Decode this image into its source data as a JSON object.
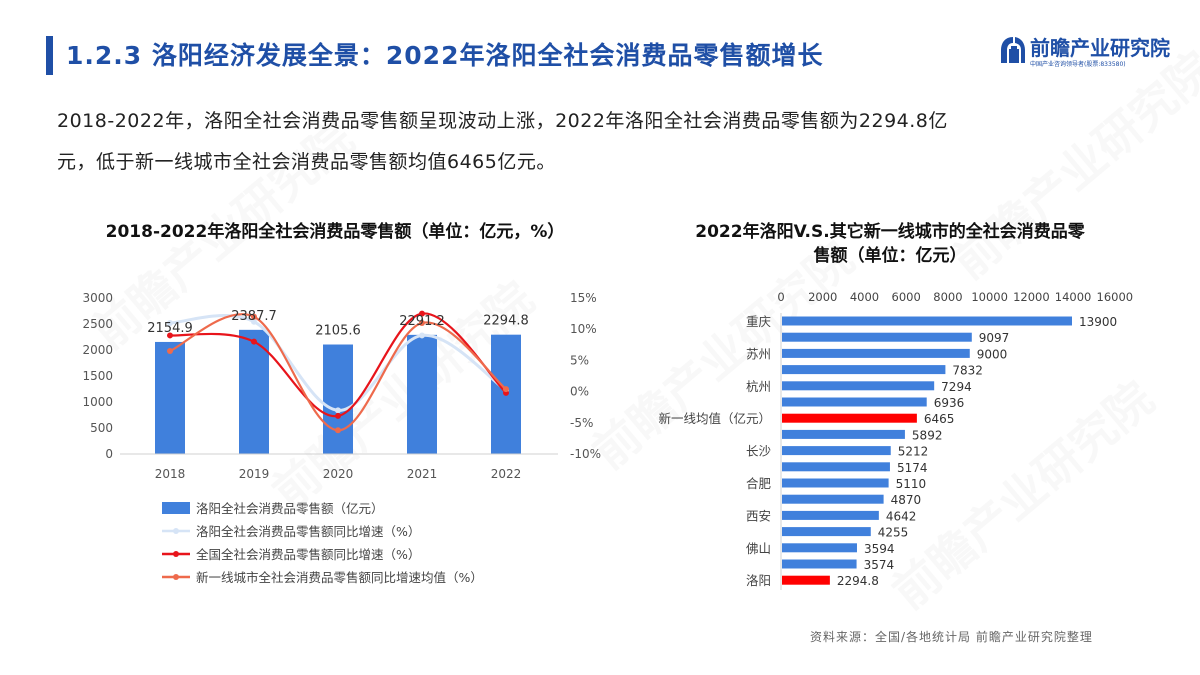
{
  "header": {
    "title": "1.2.3 洛阳经济发展全景：2022年洛阳全社会消费品零售额增长",
    "accent_color": "#1f4fa6",
    "logo": {
      "name": "前瞻产业研究院",
      "subtitle": "中国产业咨询领导者(股票:833580)",
      "icon": "qianzhan-logo-icon"
    }
  },
  "summary": {
    "line1": "2018-2022年，洛阳全社会消费品零售额呈现波动上涨，2022年洛阳全社会消费品零售额为2294.8亿",
    "line2": "元，低于新一线城市全社会消费品零售额均值6465亿元。"
  },
  "left_chart": {
    "title": "2018-2022年洛阳全社会消费品零售额（单位：亿元，%）",
    "legend": [
      {
        "label": "洛阳全社会消费品零售额（亿元）",
        "type": "bar",
        "color": "#4080dc"
      },
      {
        "label": "洛阳全社会消费品零售额同比增速（%）",
        "type": "line",
        "color": "#d6e4f6"
      },
      {
        "label": "全国全社会消费品零售额同比增速（%）",
        "type": "line",
        "color": "#e8141b"
      },
      {
        "label": "新一线城市全社会消费品零售额同比增速均值（%）",
        "type": "line",
        "color": "#ee6a4c"
      }
    ]
  },
  "right_chart": {
    "title_line1": "2022年洛阳V.S.其它新一线城市的全社会消费品零",
    "title_line2": "售额（单位：亿元）"
  },
  "source": "资料来源：全国/各地统计局 前瞻产业研究院整理",
  "chart_data": [
    {
      "type": "bar+line",
      "title": "2018-2022年洛阳全社会消费品零售额（单位：亿元，%）",
      "categories": [
        "2018",
        "2019",
        "2020",
        "2021",
        "2022"
      ],
      "y_left": {
        "ticks": [
          "0",
          "500",
          "1000",
          "1500",
          "2000",
          "2500",
          "3000"
        ],
        "ylim": [
          0,
          3000
        ]
      },
      "y_right": {
        "ticks": [
          "-10%",
          "-5%",
          "0%",
          "5%",
          "10%",
          "15%"
        ],
        "ylim": [
          -10,
          15
        ]
      },
      "series": [
        {
          "name": "洛阳全社会消费品零售额（亿元）",
          "type": "bar",
          "axis": "left",
          "color": "#4080dc",
          "values": [
            2154.9,
            2387.7,
            2105.6,
            2291.2,
            2294.8
          ],
          "labels": [
            "2154.9",
            "2387.7",
            "2105.6",
            "2291.2",
            "2294.8"
          ]
        },
        {
          "name": "洛阳全社会消费品零售额同比增速（%）",
          "type": "line",
          "axis": "right",
          "color": "#d6e4f6",
          "values": [
            11.0,
            11.2,
            -3.0,
            9.0,
            0.2
          ]
        },
        {
          "name": "全国全社会消费品零售额同比增速（%）",
          "type": "line",
          "axis": "right",
          "color": "#e8141b",
          "values": [
            9.0,
            8.0,
            -3.9,
            12.5,
            -0.2
          ]
        },
        {
          "name": "新一线城市全社会消费品零售额同比增速均值（%）",
          "type": "line",
          "axis": "right",
          "color": "#ee6a4c",
          "values": [
            6.5,
            12.0,
            -6.2,
            11.0,
            0.4
          ]
        }
      ],
      "legend_position": "bottom",
      "grid": false
    },
    {
      "type": "bar",
      "orientation": "horizontal",
      "title": "2022年洛阳V.S.其它新一线城市的全社会消费品零售额（单位：亿元）",
      "x_ticks": [
        "0",
        "2000",
        "4000",
        "6000",
        "8000",
        "10000",
        "12000",
        "14000",
        "16000"
      ],
      "xlim": [
        0,
        16000
      ],
      "x_axis_position": "top",
      "categories": [
        "重庆",
        "",
        "苏州",
        "",
        "杭州",
        "",
        "新一线均值（亿元）",
        "",
        "长沙",
        "",
        "合肥",
        "",
        "西安",
        "",
        "佛山",
        "",
        "洛阳"
      ],
      "values": [
        13900,
        9097,
        9000,
        7832,
        7294,
        6936,
        6465,
        5892,
        5212,
        5174,
        5110,
        4870,
        4642,
        4255,
        3594,
        3574,
        2294.8
      ],
      "value_labels": [
        "13900",
        "9097",
        "9000",
        "7832",
        "7294",
        "6936",
        "6465",
        "5892",
        "5212",
        "5174",
        "5110",
        "4870",
        "4642",
        "4255",
        "3594",
        "3574",
        "2294.8"
      ],
      "colors": [
        "#4080dc",
        "#4080dc",
        "#4080dc",
        "#4080dc",
        "#4080dc",
        "#4080dc",
        "#ff0000",
        "#4080dc",
        "#4080dc",
        "#4080dc",
        "#4080dc",
        "#4080dc",
        "#4080dc",
        "#4080dc",
        "#4080dc",
        "#4080dc",
        "#ff0000"
      ],
      "highlighted": [
        "新一线均值（亿元）",
        "洛阳"
      ]
    }
  ]
}
